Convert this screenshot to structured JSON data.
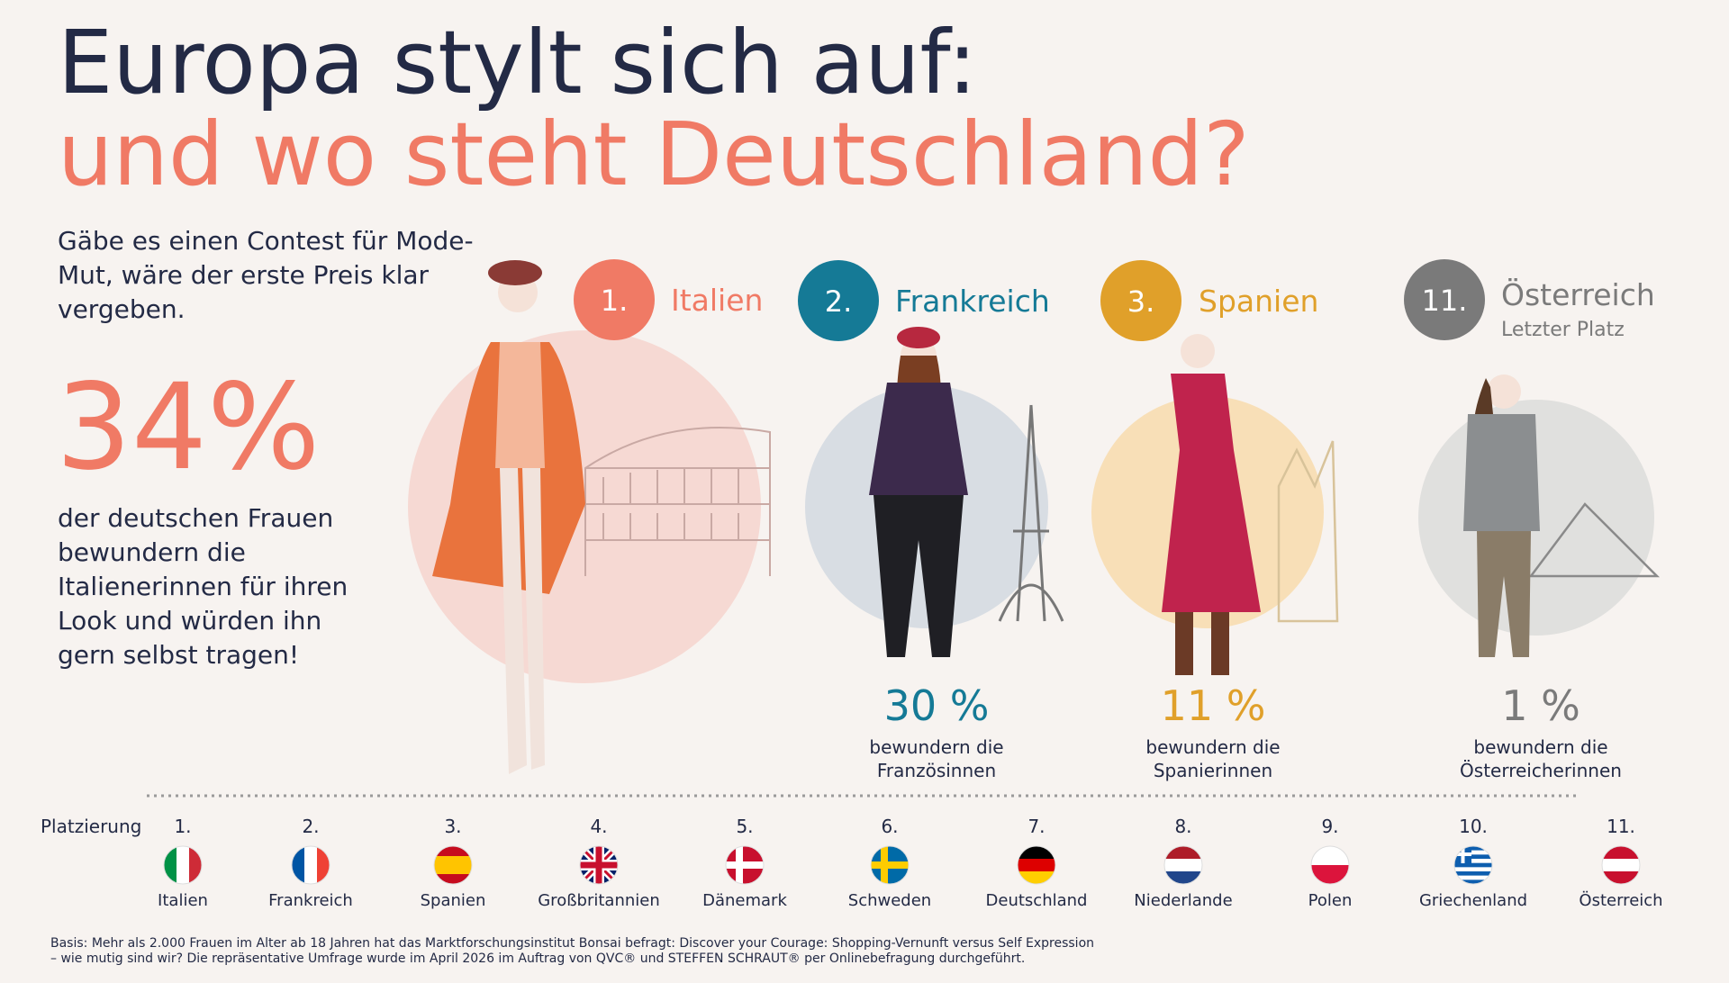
{
  "title": {
    "line1": "Europa stylt sich auf:",
    "line2": "und wo steht Deutschland?"
  },
  "intro": [
    "Gäbe es einen Contest für Mode-",
    "Mut, wäre der erste Preis klar",
    "vergeben."
  ],
  "highlight": {
    "value": "34%",
    "text": [
      "der deutschen Frauen",
      "bewundern die",
      "Italienerinnen für ihren",
      "Look und würden ihn",
      "gern selbst tragen!"
    ]
  },
  "podium": [
    {
      "rank": "1.",
      "country": "Italien"
    },
    {
      "rank": "2.",
      "country": "Frankreich",
      "percent": "30 %",
      "text": [
        "bewundern die",
        "Französinnen"
      ]
    },
    {
      "rank": "3.",
      "country": "Spanien",
      "percent": "11 %",
      "text": [
        "bewundern die",
        "Spanierinnen"
      ]
    },
    {
      "rank": "11.",
      "country": "Österreich",
      "note": "Letzter Platz",
      "percent": "1 %",
      "text": [
        "bewundern die",
        "Österreicherinnen"
      ]
    }
  ],
  "ranking": {
    "label": "Platzierung",
    "items": [
      {
        "rank": "1.",
        "country": "Italien"
      },
      {
        "rank": "2.",
        "country": "Frankreich"
      },
      {
        "rank": "3.",
        "country": "Spanien"
      },
      {
        "rank": "4.",
        "country": "Großbritannien"
      },
      {
        "rank": "5.",
        "country": "Dänemark"
      },
      {
        "rank": "6.",
        "country": "Schweden"
      },
      {
        "rank": "7.",
        "country": "Deutschland"
      },
      {
        "rank": "8.",
        "country": "Niederlande"
      },
      {
        "rank": "9.",
        "country": "Polen"
      },
      {
        "rank": "10.",
        "country": "Griechenland"
      },
      {
        "rank": "11.",
        "country": "Österreich"
      }
    ]
  },
  "footnote": [
    "Basis: Mehr als 2.000 Frauen im Alter ab 18 Jahren hat das Marktforschungsinstitut Bonsai befragt: Discover your Courage: Shopping-Vernunft versus Self Expression",
    "– wie mutig sind wir? Die repräsentative Umfrage wurde im April 2026 im Auftrag von QVC® und STEFFEN SCHRAUT® per Onlinebefragung durchgeführt."
  ]
}
